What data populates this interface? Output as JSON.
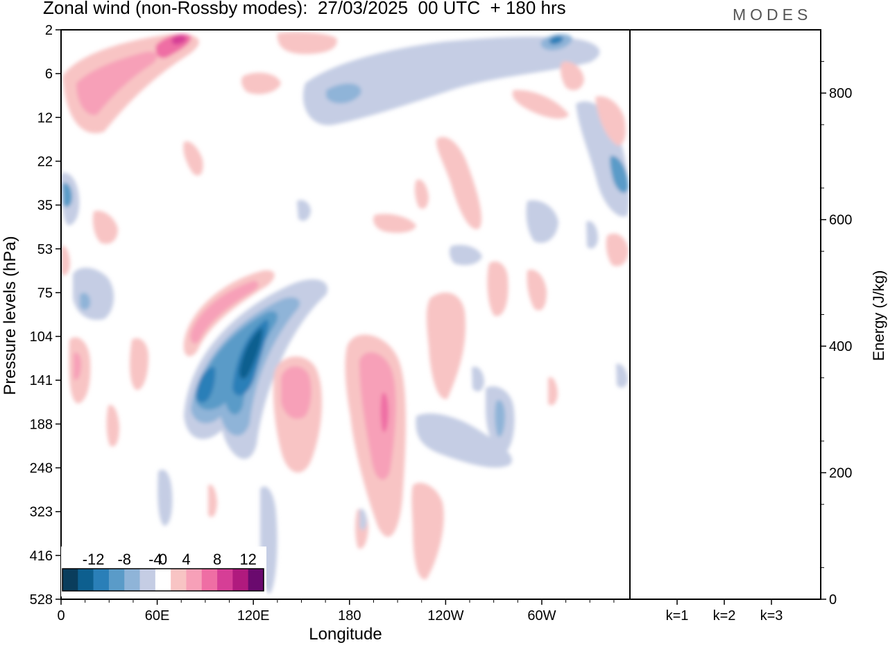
{
  "title": "Zonal wind (non-Rossby modes):  27/03/2025  00 UTC  + 180 hrs",
  "logo": "MODES",
  "chart_data": [
    {
      "type": "heatmap",
      "title": "Zonal wind (non-Rossby modes):  27/03/2025  00 UTC  + 180 hrs",
      "xlabel": "Longitude",
      "ylabel": "Pressure levels (hPa)",
      "xticks": [
        "0",
        "60E",
        "120E",
        "180",
        "120W",
        "60W"
      ],
      "yticks": [
        "2",
        "6",
        "12",
        "22",
        "35",
        "53",
        "75",
        "104",
        "141",
        "188",
        "248",
        "323",
        "416",
        "528"
      ],
      "colorbar": {
        "ticks": [
          "-12",
          "-8",
          "-4",
          "0",
          "4",
          "8",
          "12"
        ],
        "levels": [
          -14,
          -12,
          -10,
          -8,
          -6,
          -4,
          -2,
          2,
          4,
          6,
          8,
          10,
          12,
          14
        ],
        "colors": [
          "#0a3d5c",
          "#0d5f8f",
          "#2a7fb8",
          "#5a9bc8",
          "#8fb4d8",
          "#c5cde4",
          "#ffffff",
          "#f8c4c4",
          "#f7a0b8",
          "#ef6ea4",
          "#d63e96",
          "#b01a7e",
          "#6a0a6e"
        ],
        "location": "bottom-left"
      },
      "features": [
        {
          "lon": 118,
          "level_index": 8.0,
          "value": -13
        },
        {
          "lon": 97,
          "level_index": 9.0,
          "value": -11
        },
        {
          "lon": 110,
          "level_index": 7.0,
          "value": 7
        },
        {
          "lon": 150,
          "level_index": 9.5,
          "value": 5
        },
        {
          "lon": 198,
          "level_index": 10.0,
          "value": 9
        },
        {
          "lon": 75,
          "level_index": 0.3,
          "value": 10
        },
        {
          "lon": 40,
          "level_index": 1.5,
          "value": 6
        },
        {
          "lon": 245,
          "level_index": 1.2,
          "value": -6
        },
        {
          "lon": 340,
          "level_index": 3.5,
          "value": -6
        },
        {
          "lon": 325,
          "level_index": 0.4,
          "value": -7
        },
        {
          "lon": 210,
          "level_index": 12.0,
          "value": 3
        }
      ]
    },
    {
      "type": "bar",
      "categories": [
        "k=1",
        "k=2",
        "k=3"
      ],
      "values": [
        0.5,
        0.5,
        0.5
      ],
      "ylabel": "Energy (J/kg)",
      "ylim": [
        0,
        900
      ],
      "yticks": [
        "0",
        "200",
        "400",
        "600",
        "800"
      ]
    }
  ]
}
